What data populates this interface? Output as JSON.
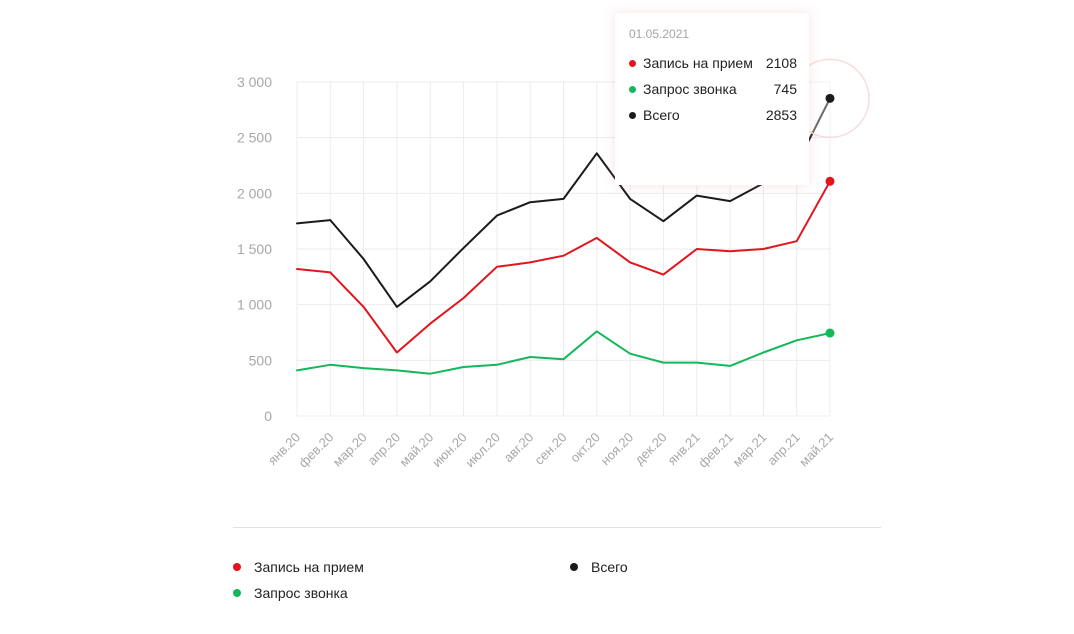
{
  "chart_data": {
    "type": "line",
    "categories": [
      "янв.20",
      "фев.20",
      "мар.20",
      "апр.20",
      "май.20",
      "июн.20",
      "июл.20",
      "авг.20",
      "сен.20",
      "окт.20",
      "ноя.20",
      "дек.20",
      "янв.21",
      "фев.21",
      "мар.21",
      "апр.21",
      "май.21"
    ],
    "series": [
      {
        "name": "Всего",
        "color": "#1b1b1b",
        "values": [
          1730,
          1760,
          1410,
          980,
          1210,
          1510,
          1800,
          1920,
          1950,
          2360,
          1950,
          1750,
          1980,
          1930,
          2090,
          2260,
          2853
        ]
      },
      {
        "name": "Запись на прием",
        "color": "#e3141c",
        "values": [
          1320,
          1290,
          980,
          570,
          830,
          1060,
          1340,
          1380,
          1440,
          1600,
          1380,
          1270,
          1500,
          1480,
          1500,
          1570,
          2108
        ]
      },
      {
        "name": "Запрос звонка",
        "color": "#12b85a",
        "values": [
          410,
          460,
          430,
          410,
          380,
          440,
          460,
          530,
          510,
          760,
          560,
          480,
          480,
          450,
          570,
          680,
          745
        ]
      }
    ],
    "ylim": [
      0,
      3000
    ],
    "yticks": [
      0,
      500,
      1000,
      1500,
      2000,
      2500,
      3000
    ],
    "ytick_labels": [
      "0",
      "500",
      "1 000",
      "1 500",
      "2 000",
      "2 500",
      "3 000"
    ],
    "grid": true,
    "legend_position": "bottom"
  },
  "tooltip": {
    "date": "01.05.2021",
    "rows": [
      {
        "label": "Запись на прием",
        "value": "2108",
        "color": "#e3141c"
      },
      {
        "label": "Запрос звонка",
        "value": "745",
        "color": "#12b85a"
      },
      {
        "label": "Всего",
        "value": "2853",
        "color": "#1b1b1b"
      }
    ]
  },
  "legend": [
    {
      "label": "Запись на прием",
      "color": "#e3141c"
    },
    {
      "label": "Всего",
      "color": "#1b1b1b"
    },
    {
      "label": "Запрос звонка",
      "color": "#12b85a"
    }
  ]
}
